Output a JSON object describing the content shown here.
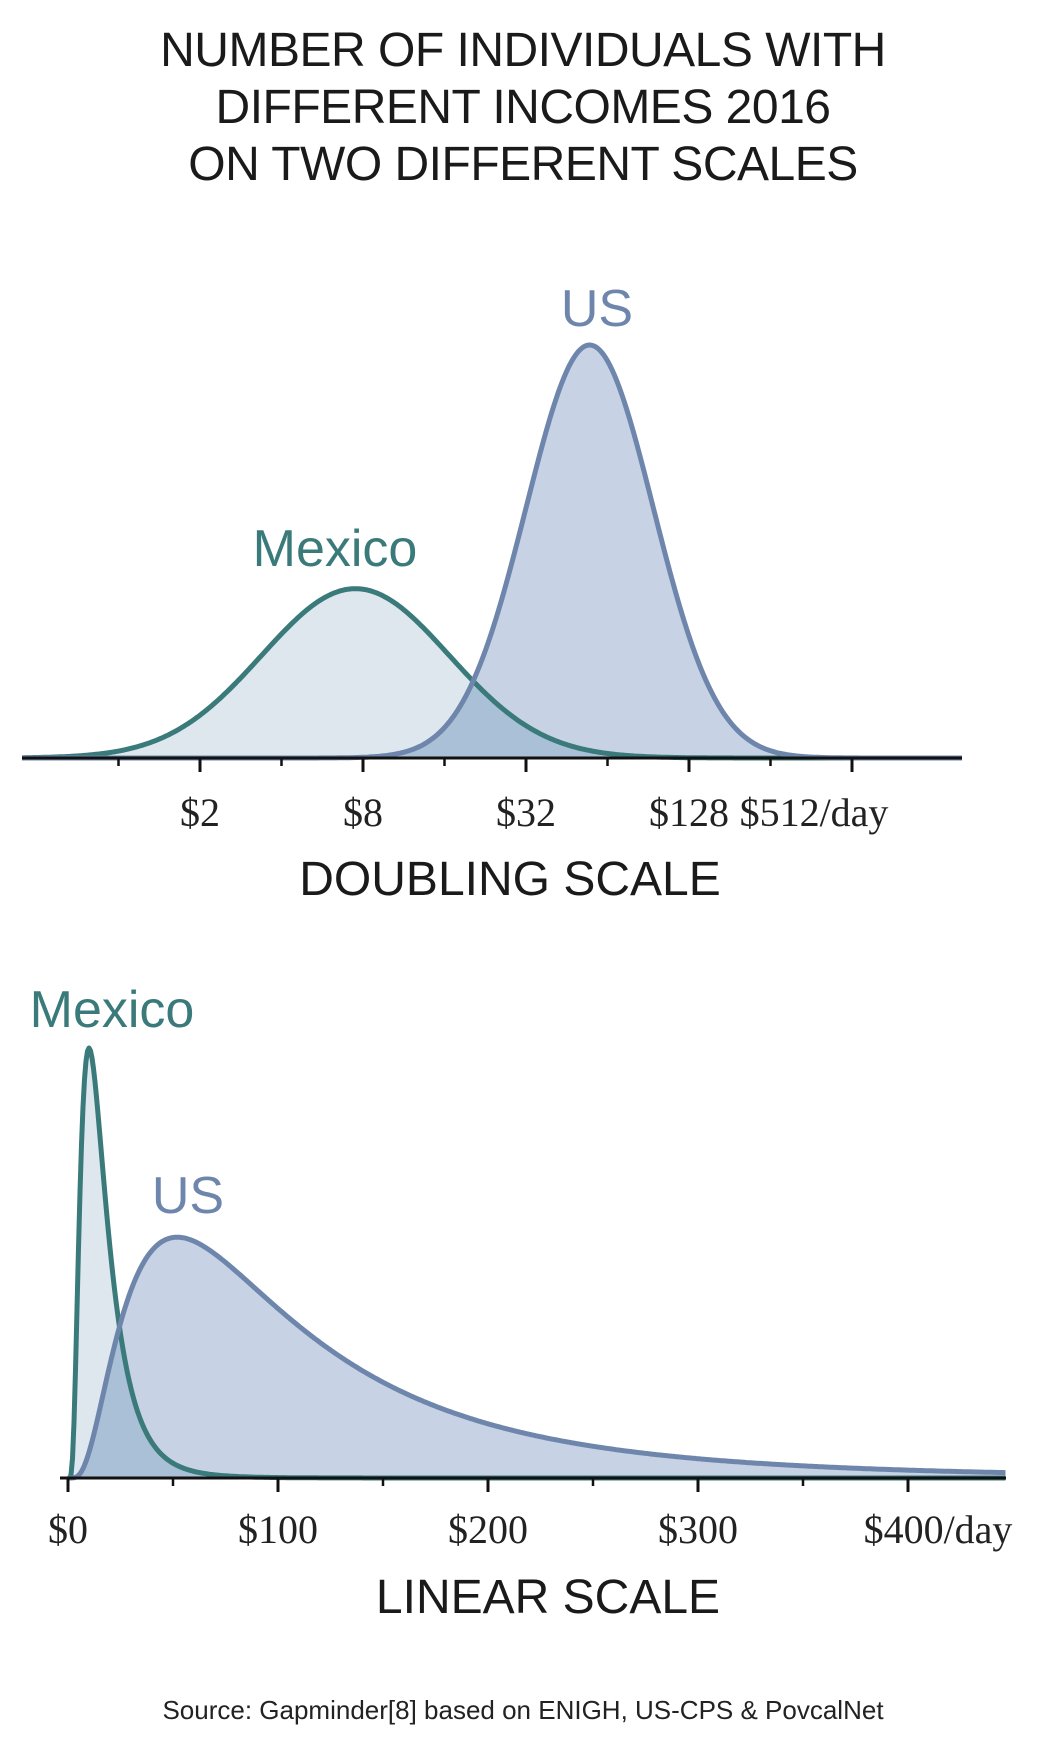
{
  "title_lines": [
    "NUMBER OF INDIVIDUALS WITH",
    "DIFFERENT INCOMES 2016",
    "ON TWO DIFFERENT SCALES"
  ],
  "source": "Source: Gapminder[8] based on ENIGH, US-CPS & PovcalNet",
  "colors": {
    "us_line": "#6f86ac",
    "us_fill": "#c7d3e5",
    "mexico_line": "#3a7a7b",
    "mexico_fill": "#dde7ed",
    "overlap_fill": "#a9c0d6",
    "axis": "#111111"
  },
  "chart_data": [
    {
      "type": "area",
      "axis_title": "DOUBLING SCALE",
      "x_scale": "log2",
      "x_unit": "$/day",
      "xlim": [
        0.5,
        1024
      ],
      "tick_values": [
        2,
        8,
        32,
        128,
        512
      ],
      "tick_labels": [
        "$2",
        "$8",
        "$32",
        "$128",
        "$512/day"
      ],
      "minor_tick_values": [
        1,
        4,
        16,
        64,
        256
      ],
      "series": [
        {
          "name": "Mexico",
          "peak_income": 7.5,
          "relative_peak_height": 0.41
        },
        {
          "name": "US",
          "peak_income": 55,
          "relative_peak_height": 1.0
        }
      ]
    },
    {
      "type": "area",
      "axis_title": "LINEAR SCALE",
      "x_scale": "linear",
      "x_unit": "$/day",
      "xlim": [
        0,
        450
      ],
      "tick_values": [
        0,
        100,
        200,
        300,
        400
      ],
      "tick_labels": [
        "$0",
        "$100",
        "$200",
        "$300",
        "$400/day"
      ],
      "minor_tick_values": [
        50,
        150,
        250,
        350
      ],
      "series": [
        {
          "name": "Mexico",
          "peak_income": 10,
          "relative_peak_height": 1.0
        },
        {
          "name": "US",
          "peak_income": 52,
          "relative_peak_height": 0.56
        }
      ]
    }
  ]
}
